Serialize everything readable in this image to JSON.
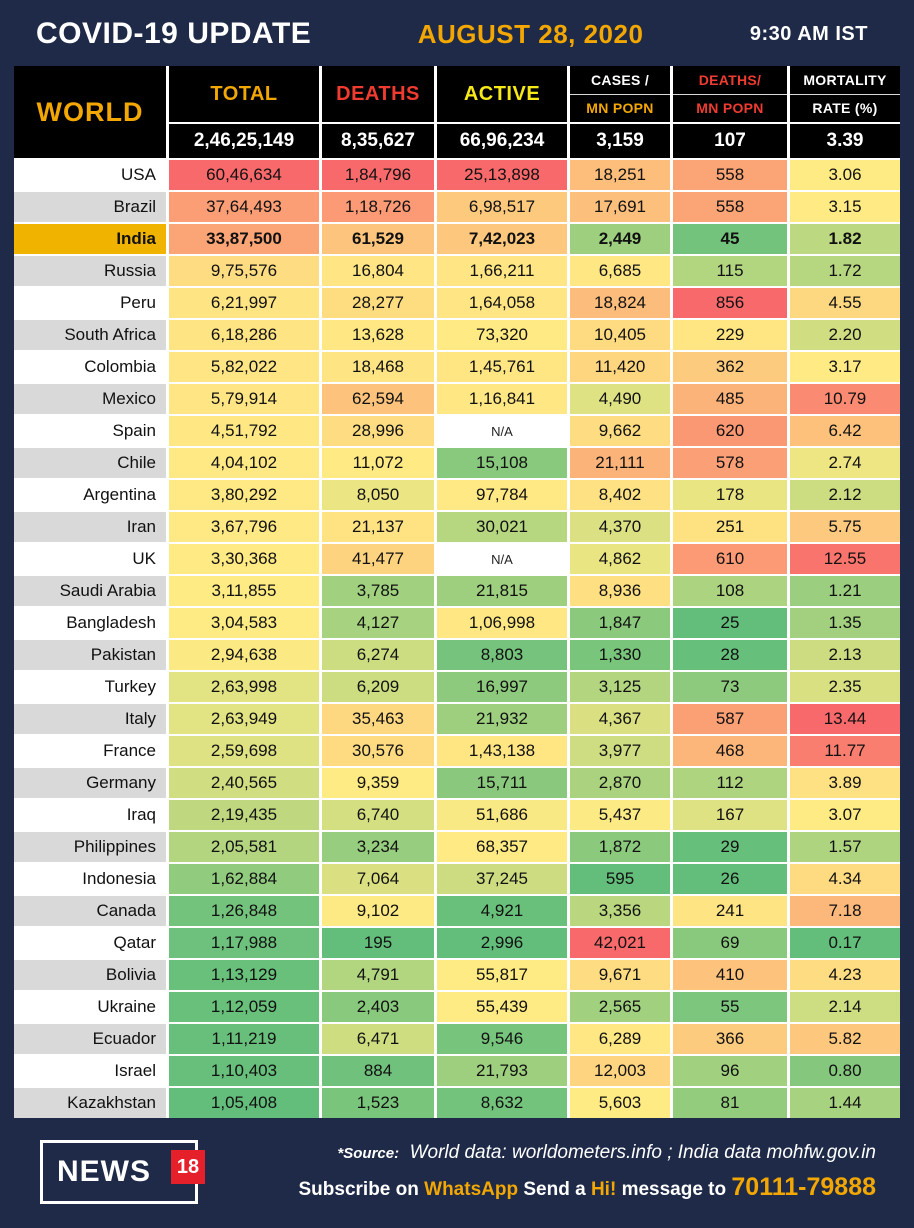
{
  "topbar": {
    "title": "COVID-19 UPDATE",
    "date": "AUGUST 28, 2020",
    "time": "9:30 AM IST"
  },
  "chart_data": {
    "type": "table",
    "title": "COVID-19 UPDATE",
    "date": "AUGUST 28, 2020",
    "time": "9:30 AM IST",
    "row_header": "WORLD",
    "highlight_country": "India",
    "na_text": "N/A",
    "columns": [
      {
        "key": "total",
        "label": "TOTAL"
      },
      {
        "key": "deaths",
        "label": "DEATHS"
      },
      {
        "key": "active",
        "label": "ACTIVE"
      },
      {
        "key": "cases_per_mn_popn",
        "line1": "CASES /",
        "line2": "MN POPN"
      },
      {
        "key": "deaths_per_mn_popn",
        "line1": "DEATHS/",
        "line2": "MN POPN"
      },
      {
        "key": "mortality_rate_pct",
        "line1": "MORTALITY",
        "line2": "RATE (%)"
      }
    ],
    "world_totals": [
      "2,46,25,149",
      "8,35,627",
      "66,96,234",
      "3,159",
      "107",
      "3.39"
    ],
    "rows": [
      {
        "country": "USA",
        "values": [
          "60,46,634",
          "1,84,796",
          "25,13,898",
          "18,251",
          "558",
          "3.06"
        ]
      },
      {
        "country": "Brazil",
        "values": [
          "37,64,493",
          "1,18,726",
          "6,98,517",
          "17,691",
          "558",
          "3.15"
        ]
      },
      {
        "country": "India",
        "values": [
          "33,87,500",
          "61,529",
          "7,42,023",
          "2,449",
          "45",
          "1.82"
        ]
      },
      {
        "country": "Russia",
        "values": [
          "9,75,576",
          "16,804",
          "1,66,211",
          "6,685",
          "115",
          "1.72"
        ]
      },
      {
        "country": "Peru",
        "values": [
          "6,21,997",
          "28,277",
          "1,64,058",
          "18,824",
          "856",
          "4.55"
        ]
      },
      {
        "country": "South Africa",
        "values": [
          "6,18,286",
          "13,628",
          "73,320",
          "10,405",
          "229",
          "2.20"
        ]
      },
      {
        "country": "Colombia",
        "values": [
          "5,82,022",
          "18,468",
          "1,45,761",
          "11,420",
          "362",
          "3.17"
        ]
      },
      {
        "country": "Mexico",
        "values": [
          "5,79,914",
          "62,594",
          "1,16,841",
          "4,490",
          "485",
          "10.79"
        ]
      },
      {
        "country": "Spain",
        "values": [
          "4,51,792",
          "28,996",
          "N/A",
          "9,662",
          "620",
          "6.42"
        ]
      },
      {
        "country": "Chile",
        "values": [
          "4,04,102",
          "11,072",
          "15,108",
          "21,111",
          "578",
          "2.74"
        ]
      },
      {
        "country": "Argentina",
        "values": [
          "3,80,292",
          "8,050",
          "97,784",
          "8,402",
          "178",
          "2.12"
        ]
      },
      {
        "country": "Iran",
        "values": [
          "3,67,796",
          "21,137",
          "30,021",
          "4,370",
          "251",
          "5.75"
        ]
      },
      {
        "country": "UK",
        "values": [
          "3,30,368",
          "41,477",
          "N/A",
          "4,862",
          "610",
          "12.55"
        ]
      },
      {
        "country": "Saudi Arabia",
        "values": [
          "3,11,855",
          "3,785",
          "21,815",
          "8,936",
          "108",
          "1.21"
        ]
      },
      {
        "country": "Bangladesh",
        "values": [
          "3,04,583",
          "4,127",
          "1,06,998",
          "1,847",
          "25",
          "1.35"
        ]
      },
      {
        "country": "Pakistan",
        "values": [
          "2,94,638",
          "6,274",
          "8,803",
          "1,330",
          "28",
          "2.13"
        ]
      },
      {
        "country": "Turkey",
        "values": [
          "2,63,998",
          "6,209",
          "16,997",
          "3,125",
          "73",
          "2.35"
        ]
      },
      {
        "country": "Italy",
        "values": [
          "2,63,949",
          "35,463",
          "21,932",
          "4,367",
          "587",
          "13.44"
        ]
      },
      {
        "country": "France",
        "values": [
          "2,59,698",
          "30,576",
          "1,43,138",
          "3,977",
          "468",
          "11.77"
        ]
      },
      {
        "country": "Germany",
        "values": [
          "2,40,565",
          "9,359",
          "15,711",
          "2,870",
          "112",
          "3.89"
        ]
      },
      {
        "country": "Iraq",
        "values": [
          "2,19,435",
          "6,740",
          "51,686",
          "5,437",
          "167",
          "3.07"
        ]
      },
      {
        "country": "Philippines",
        "values": [
          "2,05,581",
          "3,234",
          "68,357",
          "1,872",
          "29",
          "1.57"
        ]
      },
      {
        "country": "Indonesia",
        "values": [
          "1,62,884",
          "7,064",
          "37,245",
          "595",
          "26",
          "4.34"
        ]
      },
      {
        "country": "Canada",
        "values": [
          "1,26,848",
          "9,102",
          "4,921",
          "3,356",
          "241",
          "7.18"
        ]
      },
      {
        "country": "Qatar",
        "values": [
          "1,17,988",
          "195",
          "2,996",
          "42,021",
          "69",
          "0.17"
        ]
      },
      {
        "country": "Bolivia",
        "values": [
          "1,13,129",
          "4,791",
          "55,817",
          "9,671",
          "410",
          "4.23"
        ]
      },
      {
        "country": "Ukraine",
        "values": [
          "1,12,059",
          "2,403",
          "55,439",
          "2,565",
          "55",
          "2.14"
        ]
      },
      {
        "country": "Ecuador",
        "values": [
          "1,11,219",
          "6,471",
          "9,546",
          "6,289",
          "366",
          "5.82"
        ]
      },
      {
        "country": "Israel",
        "values": [
          "1,10,403",
          "884",
          "21,793",
          "12,003",
          "96",
          "0.80"
        ]
      },
      {
        "country": "Kazakhstan",
        "values": [
          "1,05,408",
          "1,523",
          "8,632",
          "5,603",
          "81",
          "1.44"
        ]
      }
    ],
    "color_scale_note": "per-column 3-color scale: min=green, median=yellow, max=red; N/A cells white"
  },
  "footer": {
    "logo_news": "NEWS",
    "logo_18": "18",
    "source_prefix": "*Source:",
    "source_text": "World data: worldometers.info ; India data mohfw.gov.in",
    "subscribe_1": "Subscribe on",
    "subscribe_whatsapp": "WhatsApp",
    "subscribe_2": "Send a",
    "subscribe_hi": "Hi!",
    "subscribe_3": "message to",
    "subscribe_phone": "70111-79888"
  },
  "colors": {
    "navy": "#1e2a47",
    "gold": "#f2a702",
    "red": "#f03b30",
    "yellow": "#f7e917",
    "india_row": "#f0b400",
    "row_alt": "#d9d9d9",
    "red_badge": "#e5202a",
    "scale_low": "#63be7b",
    "scale_mid": "#ffeb84",
    "scale_high": "#f8696b"
  }
}
